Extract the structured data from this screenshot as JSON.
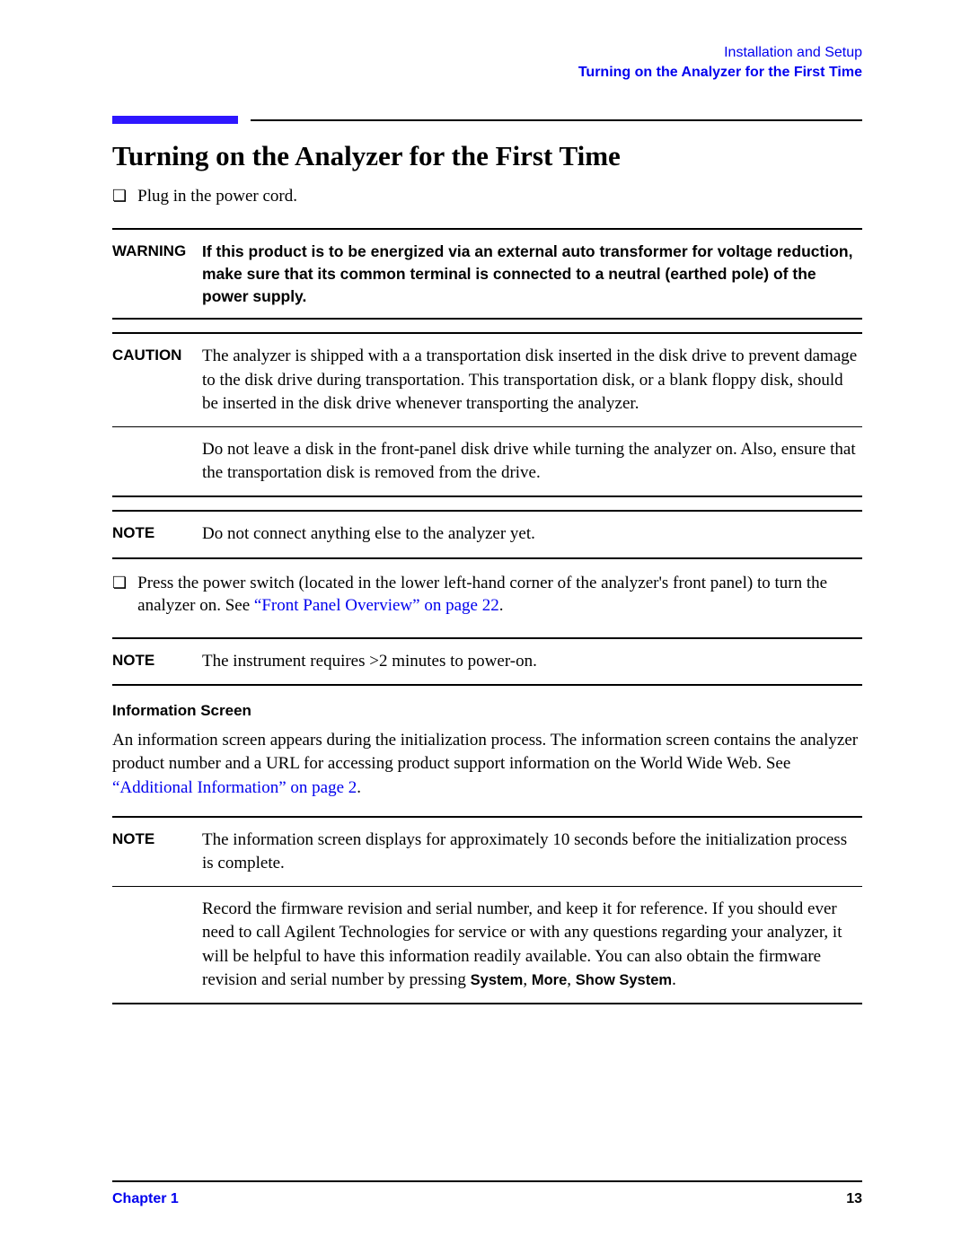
{
  "header": {
    "line1": "Installation and Setup",
    "line2": "Turning on the Analyzer for the First Time"
  },
  "heading": "Turning on the Analyzer for the First Time",
  "step1": "Plug in the power cord.",
  "warning": {
    "label": "WARNING",
    "text": "If this product is to be energized via an external auto transformer for voltage reduction, make sure that its common terminal is connected to a neutral (earthed pole) of the power supply."
  },
  "caution": {
    "label": "CAUTION",
    "para1": "The analyzer is shipped with a a transportation disk inserted in the disk drive to prevent damage to the disk drive during transportation. This transportation disk, or a blank floppy disk, should be inserted in the disk drive whenever transporting the analyzer.",
    "para2": "Do not leave a disk in the front-panel disk drive while turning the analyzer on. Also, ensure that the transportation disk is removed from the drive."
  },
  "note1": {
    "label": "NOTE",
    "text": "Do not connect anything else to the analyzer yet."
  },
  "step2_a": "Press the power switch (located in the lower left-hand corner of the analyzer's front panel) to turn the analyzer on. See ",
  "step2_link": "“Front Panel Overview” on page 22",
  "step2_b": ".",
  "note2": {
    "label": "NOTE",
    "text": "The instrument requires >2 minutes to power-on."
  },
  "infoScreen": {
    "heading": "Information Screen",
    "para_a": "An information screen appears during the initialization process. The information screen contains the analyzer product number and a URL for accessing product support information on the World Wide Web. See ",
    "para_link": "“Additional Information” on page 2",
    "para_b": "."
  },
  "note3": {
    "label": "NOTE",
    "para1": "The information screen displays for approximately 10 seconds before the initialization process is complete.",
    "para2_a": "Record the firmware revision and serial number, and keep it for reference. If you should ever need to call Agilent Technologies for service or with any questions regarding your analyzer, it will be helpful to have this information readily available. You can also obtain the firmware revision and serial number by pressing ",
    "btn1": "System",
    "sep": ", ",
    "btn2": "More",
    "btn3": "Show System",
    "para2_b": "."
  },
  "footer": {
    "chapter": "Chapter 1",
    "page": "13"
  }
}
